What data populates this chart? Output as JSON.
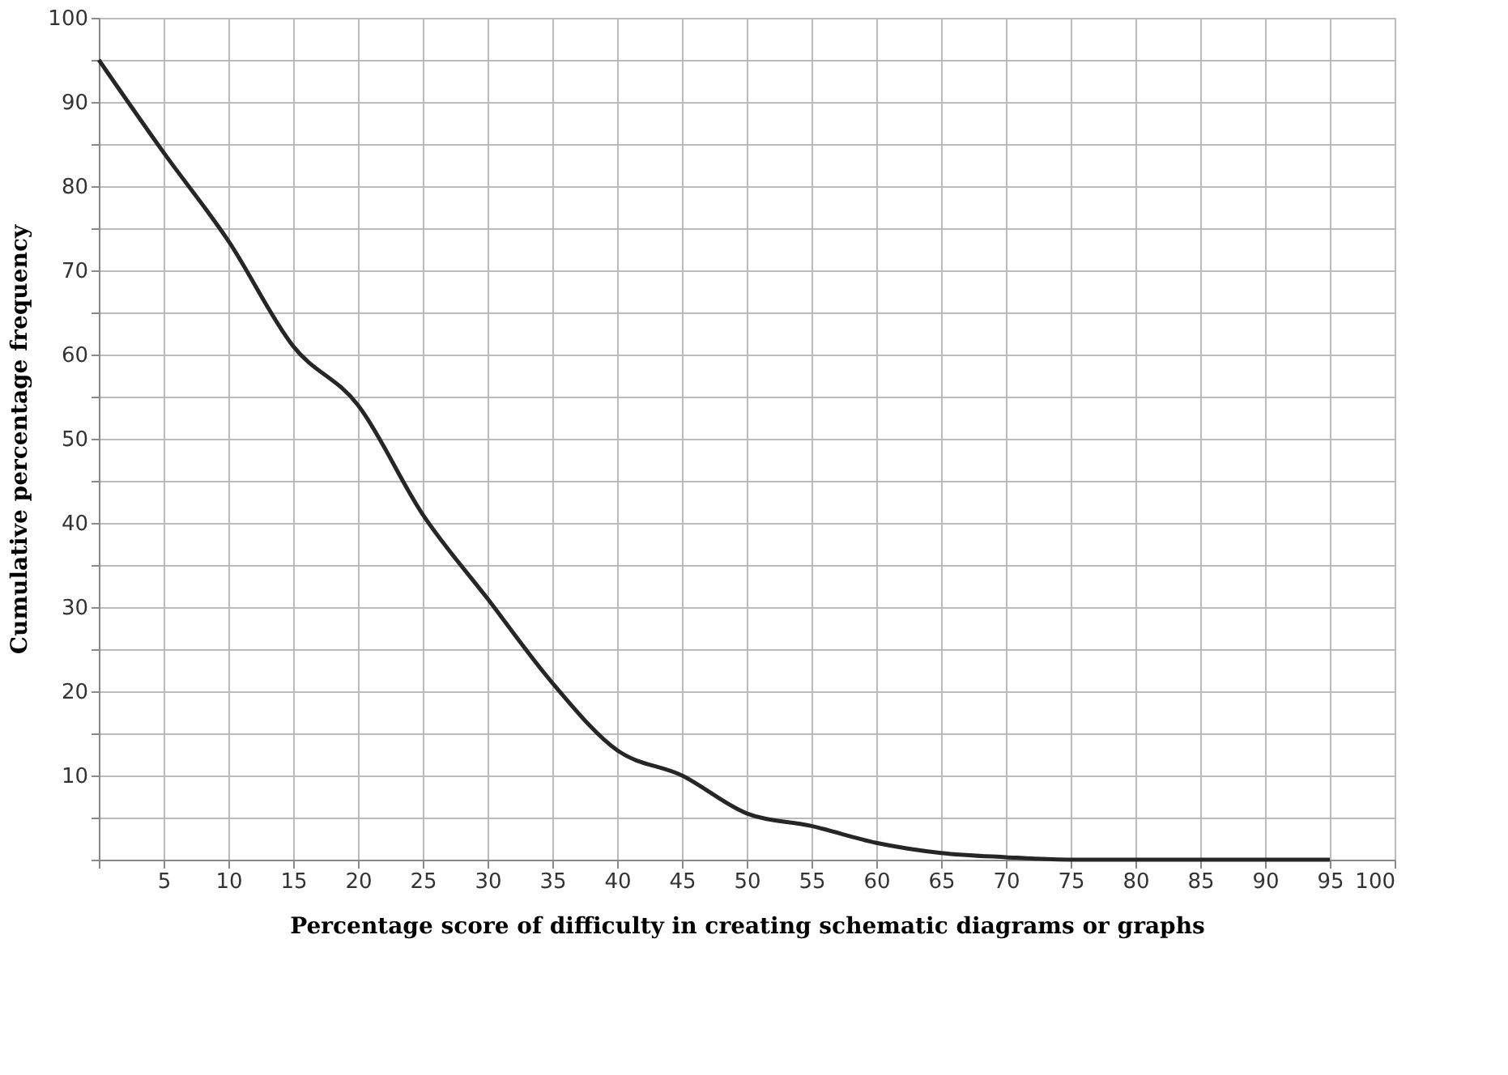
{
  "chart_data": {
    "type": "line",
    "xlabel": "Percentage score of difficulty in creating schematic diagrams or graphs",
    "ylabel": "Cumulative percentage frequency",
    "x": [
      0,
      5,
      10,
      15,
      20,
      25,
      30,
      35,
      40,
      45,
      50,
      55,
      60,
      65,
      70,
      75,
      80,
      85,
      90,
      95
    ],
    "series": [
      {
        "color": "#262626",
        "values": [
          95,
          84,
          73.5,
          61,
          54,
          41,
          31,
          21,
          13,
          10,
          5.5,
          4,
          2,
          0.8,
          0.3,
          0,
          0,
          0,
          0,
          0
        ]
      }
    ],
    "xlim": [
      0,
      100
    ],
    "ylim": [
      0,
      100
    ],
    "xticks": [
      {
        "value": 0,
        "label": null
      },
      5,
      10,
      15,
      20,
      25,
      30,
      35,
      40,
      45,
      50,
      55,
      60,
      65,
      70,
      75,
      80,
      85,
      90,
      95,
      100
    ],
    "yticks": [
      {
        "value": 0,
        "label": null
      },
      {
        "value": 5,
        "label": null
      },
      10,
      {
        "value": 15,
        "label": null
      },
      20,
      {
        "value": 25,
        "label": null
      },
      30,
      {
        "value": 35,
        "label": null
      },
      40,
      {
        "value": 45,
        "label": null
      },
      50,
      {
        "value": 55,
        "label": null
      },
      60,
      {
        "value": 65,
        "label": null
      },
      70,
      {
        "value": 75,
        "label": null
      },
      80,
      {
        "value": 85,
        "label": null
      },
      90,
      {
        "value": 95,
        "label": null
      },
      100
    ],
    "grid": true,
    "legend": false,
    "marker": "none",
    "line_style": "solid"
  }
}
